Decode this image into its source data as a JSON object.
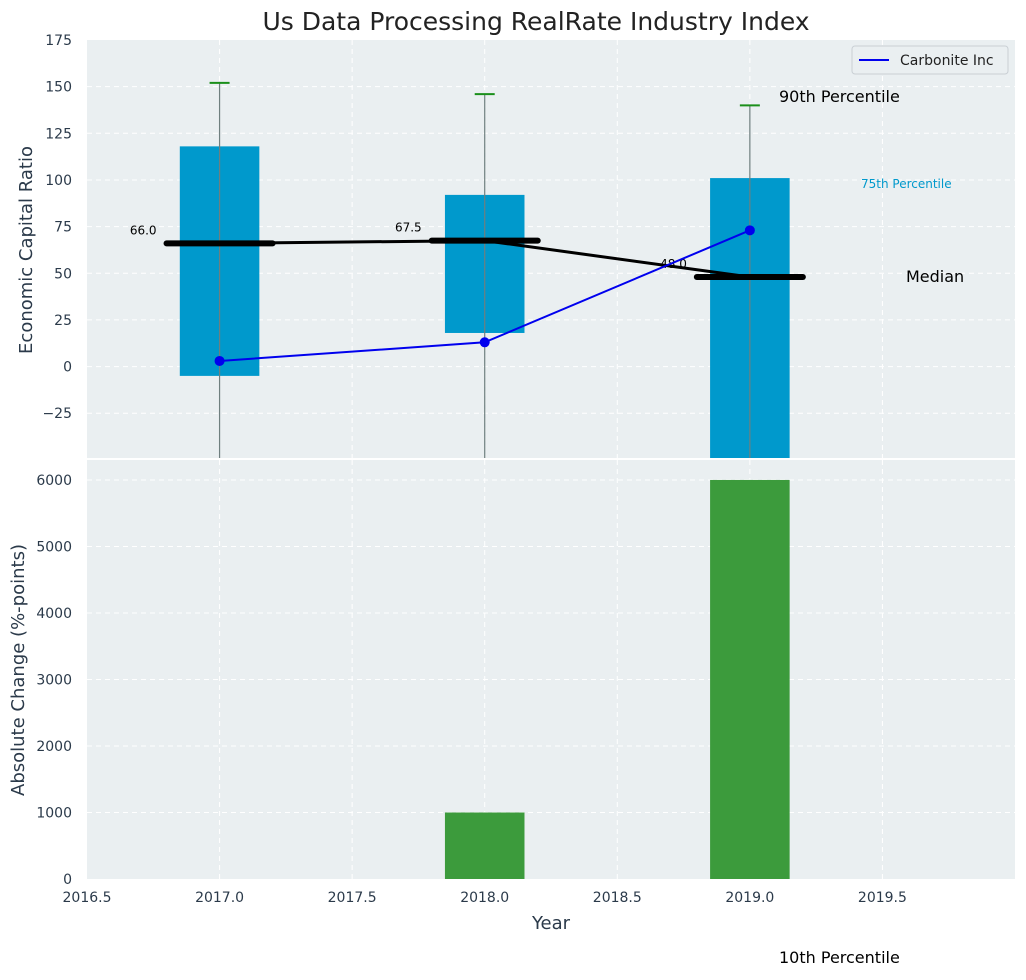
{
  "chart_data": {
    "type": "bar",
    "title": "Us Data Processing RealRate Industry Index",
    "xlabel": "Year",
    "x_ticks": [
      "2016.5",
      "2017.0",
      "2017.5",
      "2018.0",
      "2018.5",
      "2019.0",
      "2019.5"
    ],
    "x_tick_values": [
      2016.5,
      2017.0,
      2017.5,
      2018.0,
      2018.5,
      2019.0,
      2019.5
    ],
    "xlim": [
      2016.5,
      2020.0
    ],
    "colors": {
      "panel_bg": "#eaeff1",
      "box": "#0099cc",
      "change_bar": "#3c9b3c",
      "whisker_cap": "#1a8f1a",
      "company_line": "#0000ee",
      "median_line": "#000000",
      "text": "#2b3a4a"
    },
    "top_panel": {
      "ylabel": "Economic Capital Ratio",
      "ylim": [
        -49,
        175
      ],
      "y_ticks": [
        "175",
        "150",
        "125",
        "100",
        "75",
        "50",
        "25",
        "0",
        "−25"
      ],
      "y_tick_values": [
        175,
        150,
        125,
        100,
        75,
        50,
        25,
        0,
        -25
      ],
      "years": [
        2017,
        2018,
        2019
      ],
      "percentile_10": [
        -49,
        -49,
        -49
      ],
      "percentile_25": [
        -5,
        18,
        -49
      ],
      "median": [
        66.0,
        67.5,
        48.0
      ],
      "median_labels": [
        "66.0",
        "67.5",
        "48.0"
      ],
      "percentile_75": [
        118,
        92,
        101
      ],
      "percentile_90": [
        152,
        146,
        140
      ],
      "company_series": {
        "name": "Carbonite Inc",
        "values": [
          3,
          13,
          73
        ]
      },
      "legend": [
        "Carbonite Inc"
      ],
      "annotations": {
        "p90": "90th Percentile",
        "p75": "75th Percentile",
        "median": "Median",
        "p10": "10th Percentile"
      }
    },
    "bottom_panel": {
      "ylabel": "Absolute Change (%-points)",
      "ylim": [
        0,
        6300
      ],
      "y_ticks": [
        "6000",
        "5000",
        "4000",
        "3000",
        "2000",
        "1000",
        "0"
      ],
      "y_tick_values": [
        6000,
        5000,
        4000,
        3000,
        2000,
        1000,
        0
      ],
      "years": [
        2017,
        2018,
        2019
      ],
      "values": [
        0,
        1000,
        6000
      ]
    }
  }
}
